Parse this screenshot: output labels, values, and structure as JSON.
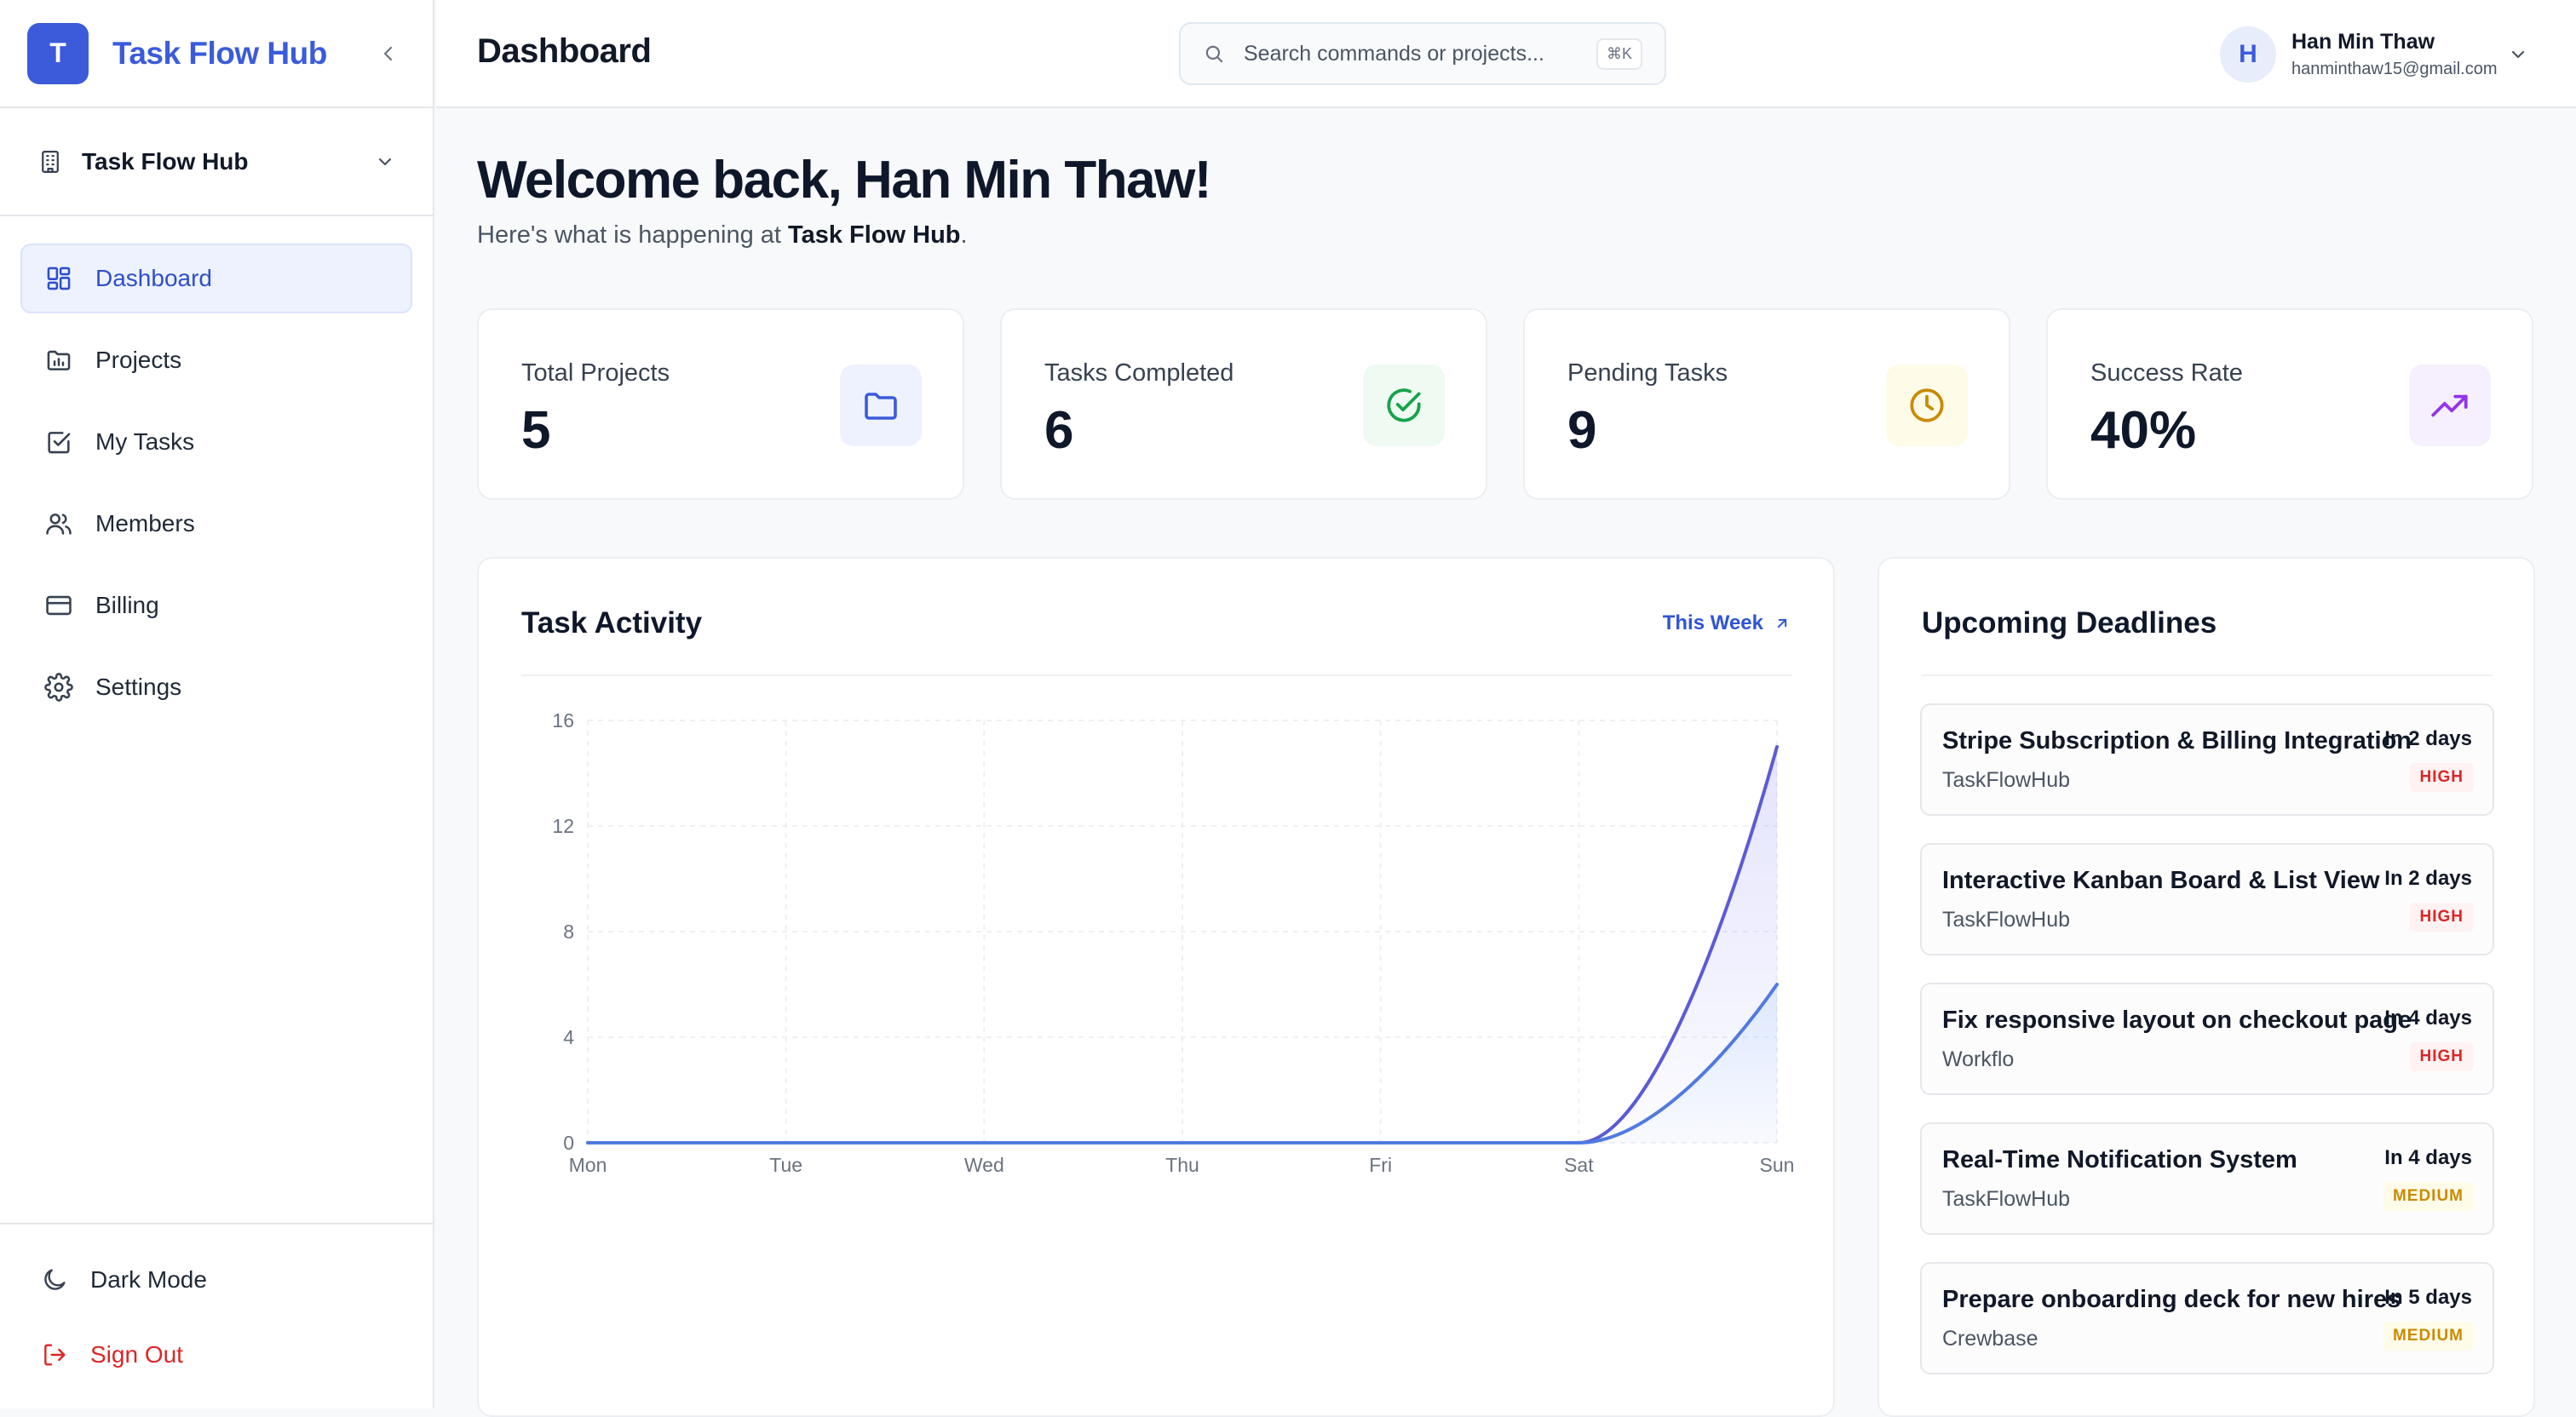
{
  "brand": {
    "logo_letter": "T",
    "name": "Task Flow Hub"
  },
  "workspace": {
    "name": "Task Flow Hub"
  },
  "nav": [
    {
      "label": "Dashboard",
      "icon": "dashboard-icon",
      "active": true
    },
    {
      "label": "Projects",
      "icon": "folder-chart-icon"
    },
    {
      "label": "My Tasks",
      "icon": "checkbox-icon"
    },
    {
      "label": "Members",
      "icon": "users-icon"
    },
    {
      "label": "Billing",
      "icon": "credit-card-icon"
    },
    {
      "label": "Settings",
      "icon": "gear-icon"
    }
  ],
  "sidebar_bottom": {
    "dark_mode": "Dark Mode",
    "sign_out": "Sign Out"
  },
  "header": {
    "title": "Dashboard",
    "search_placeholder": "Search commands or projects...",
    "search_shortcut": "⌘K",
    "user": {
      "initial": "H",
      "name": "Han Min Thaw",
      "email": "hanminthaw15@gmail.com"
    }
  },
  "welcome": {
    "title": "Welcome back, Han Min Thaw!",
    "subtitle_prefix": "Here's what is happening at ",
    "subtitle_org": "Task Flow Hub",
    "subtitle_suffix": "."
  },
  "stats": [
    {
      "label": "Total Projects",
      "value": "5",
      "icon": "folder-icon",
      "color": "#3b5bdb",
      "bg": "#eef2fe"
    },
    {
      "label": "Tasks Completed",
      "value": "6",
      "icon": "check-circle-icon",
      "color": "#16a34a",
      "bg": "#effaf2"
    },
    {
      "label": "Pending Tasks",
      "value": "9",
      "icon": "clock-icon",
      "color": "#ca8a04",
      "bg": "#fefbe8"
    },
    {
      "label": "Success Rate",
      "value": "40%",
      "icon": "trending-up-icon",
      "color": "#9333ea",
      "bg": "#f6f0fe"
    }
  ],
  "activity": {
    "title": "Task Activity",
    "range_label": "This Week",
    "chart_data": {
      "type": "area",
      "categories": [
        "Mon",
        "Tue",
        "Wed",
        "Thu",
        "Fri",
        "Sat",
        "Sun"
      ],
      "ylim": [
        0,
        16
      ],
      "yticks": [
        "0",
        "4",
        "8",
        "12",
        "16"
      ],
      "series": [
        {
          "values": [
            0,
            0,
            0,
            0,
            0,
            0,
            15
          ],
          "color": "#5b5bd6"
        },
        {
          "values": [
            0,
            0,
            0,
            0,
            0,
            0,
            6
          ],
          "color": "#4f7be0"
        }
      ]
    }
  },
  "deadlines": {
    "title": "Upcoming Deadlines",
    "items": [
      {
        "title": "Stripe Subscription & Billing Integration",
        "project": "TaskFlowHub",
        "due": "In 2 days",
        "priority": "HIGH",
        "level": "high"
      },
      {
        "title": "Interactive Kanban Board & List View",
        "project": "TaskFlowHub",
        "due": "In 2 days",
        "priority": "HIGH",
        "level": "high"
      },
      {
        "title": "Fix responsive layout on checkout page",
        "project": "Workflo",
        "due": "In 4 days",
        "priority": "HIGH",
        "level": "high"
      },
      {
        "title": "Real-Time Notification System",
        "project": "TaskFlowHub",
        "due": "In 4 days",
        "priority": "MEDIUM",
        "level": "medium"
      },
      {
        "title": "Prepare onboarding deck for new hires",
        "project": "Crewbase",
        "due": "In 5 days",
        "priority": "MEDIUM",
        "level": "medium"
      }
    ]
  }
}
